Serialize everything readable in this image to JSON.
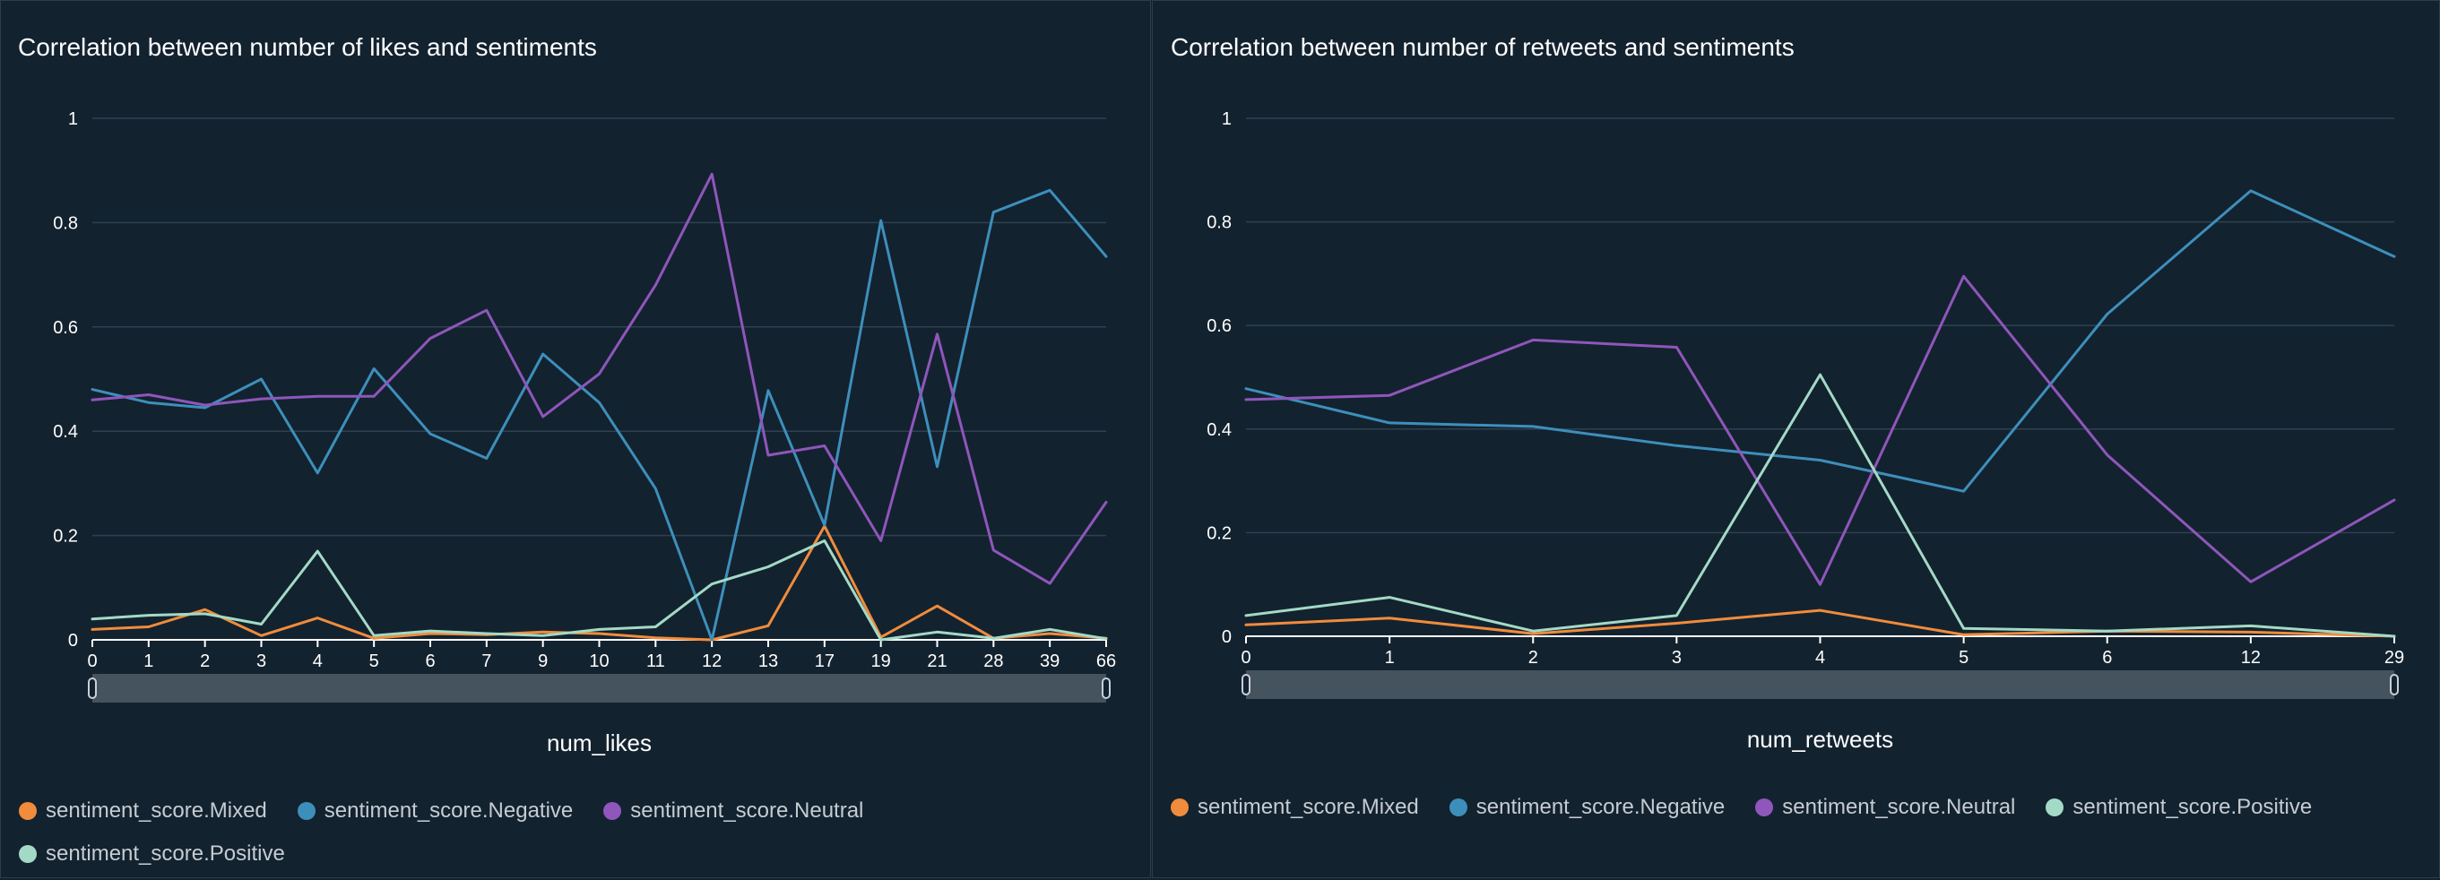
{
  "chart_data": [
    {
      "type": "line",
      "title": "Correlation between number of likes and sentiments",
      "xlabel": "num_likes",
      "ylabel": "",
      "categories": [
        "0",
        "1",
        "2",
        "3",
        "4",
        "5",
        "6",
        "7",
        "9",
        "10",
        "11",
        "12",
        "13",
        "17",
        "19",
        "21",
        "28",
        "39",
        "66"
      ],
      "ylim": [
        0,
        1
      ],
      "yticks": [
        "0",
        "0.2",
        "0.4",
        "0.6",
        "0.8",
        "1"
      ],
      "grid": true,
      "legend_position": "bottom",
      "series": [
        {
          "name": "sentiment_score.Mixed",
          "color": "#f08c3c",
          "values": [
            0.02,
            0.025,
            0.058,
            0.008,
            0.042,
            0.003,
            0.012,
            0.01,
            0.015,
            0.012,
            0.004,
            0.0,
            0.027,
            0.218,
            0.005,
            0.065,
            0.003,
            0.012,
            0.003
          ]
        },
        {
          "name": "sentiment_score.Negative",
          "color": "#3d8fbb",
          "values": [
            0.48,
            0.455,
            0.445,
            0.5,
            0.32,
            0.52,
            0.395,
            0.348,
            0.548,
            0.455,
            0.29,
            0.0,
            0.478,
            0.22,
            0.804,
            0.332,
            0.82,
            0.862,
            0.735
          ]
        },
        {
          "name": "sentiment_score.Neutral",
          "color": "#8f56bb",
          "values": [
            0.46,
            0.47,
            0.45,
            0.462,
            0.467,
            0.467,
            0.578,
            0.632,
            0.428,
            0.51,
            0.68,
            0.893,
            0.354,
            0.372,
            0.19,
            0.586,
            0.172,
            0.108,
            0.264
          ]
        },
        {
          "name": "sentiment_score.Positive",
          "color": "#a3dac6",
          "values": [
            0.04,
            0.047,
            0.05,
            0.03,
            0.17,
            0.008,
            0.017,
            0.012,
            0.008,
            0.02,
            0.025,
            0.107,
            0.14,
            0.19,
            0.0,
            0.015,
            0.003,
            0.02,
            0.002
          ]
        }
      ]
    },
    {
      "type": "line",
      "title": "Correlation between number of retweets and sentiments",
      "xlabel": "num_retweets",
      "ylabel": "",
      "categories": [
        "0",
        "1",
        "2",
        "3",
        "4",
        "5",
        "6",
        "12",
        "29"
      ],
      "ylim": [
        0,
        1
      ],
      "yticks": [
        "0",
        "0.2",
        "0.4",
        "0.6",
        "0.8",
        "1"
      ],
      "grid": true,
      "legend_position": "bottom",
      "series": [
        {
          "name": "sentiment_score.Mixed",
          "color": "#f08c3c",
          "values": [
            0.022,
            0.035,
            0.005,
            0.025,
            0.05,
            0.003,
            0.01,
            0.008,
            0.0
          ]
        },
        {
          "name": "sentiment_score.Negative",
          "color": "#3d8fbb",
          "values": [
            0.478,
            0.412,
            0.405,
            0.368,
            0.34,
            0.28,
            0.622,
            0.86,
            0.733
          ]
        },
        {
          "name": "sentiment_score.Neutral",
          "color": "#8f56bb",
          "values": [
            0.457,
            0.465,
            0.572,
            0.558,
            0.1,
            0.695,
            0.35,
            0.105,
            0.263
          ]
        },
        {
          "name": "sentiment_score.Positive",
          "color": "#a3dac6",
          "values": [
            0.04,
            0.075,
            0.01,
            0.04,
            0.505,
            0.015,
            0.01,
            0.02,
            0.0
          ]
        }
      ]
    }
  ]
}
